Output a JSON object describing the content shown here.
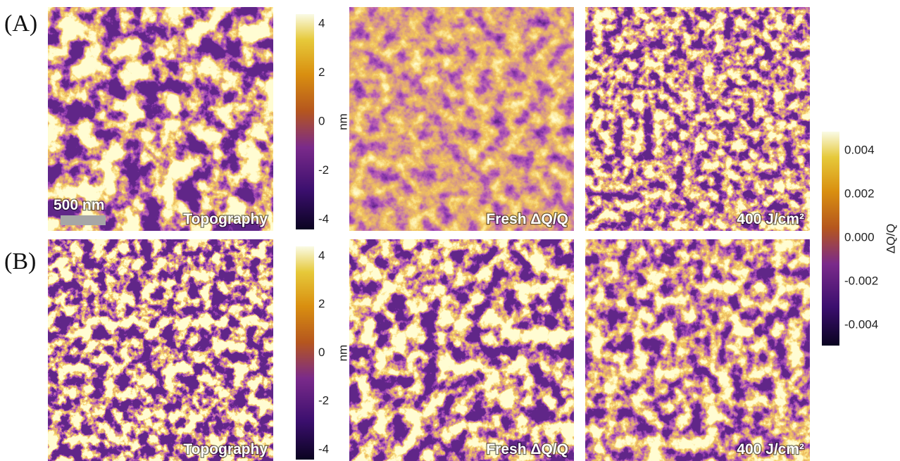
{
  "panels": [
    {
      "label": "(A)",
      "images": [
        {
          "caption": "Topography"
        },
        {
          "caption": "Fresh ΔQ/Q"
        },
        {
          "caption": "400 J/cm²"
        }
      ],
      "colorbar": {
        "ticks": [
          "4",
          "2",
          "0",
          "-2",
          "-4"
        ],
        "unit": "nm"
      }
    },
    {
      "label": "(B)",
      "images": [
        {
          "caption": "Topography"
        },
        {
          "caption": "Fresh ΔQ/Q"
        },
        {
          "caption": "400 J/cm²"
        }
      ],
      "colorbar": {
        "ticks": [
          "4",
          "2",
          "0",
          "-2",
          "-4"
        ],
        "unit": "nm"
      }
    }
  ],
  "scale_bar": "500 nm",
  "shared_colorbar": {
    "ticks": [
      "0.004",
      "0.002",
      "0.000",
      "-0.002",
      "-0.004"
    ],
    "label": "ΔQ/Q"
  }
}
